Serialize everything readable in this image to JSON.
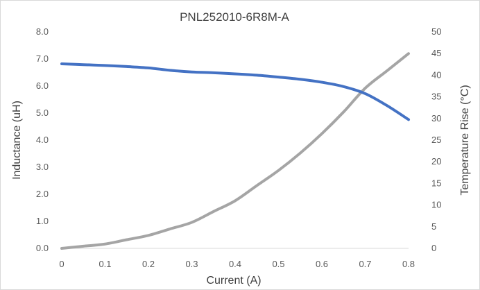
{
  "chart_data": {
    "type": "line",
    "title": "PNL252010-6R8M-A",
    "xlabel": "Current (A)",
    "ylabel": "Inductance (uH)",
    "y2label": "Temperature Rise (°C)",
    "xlim": [
      0,
      0.8
    ],
    "ylim": [
      0,
      8
    ],
    "y2lim": [
      0,
      50
    ],
    "x_ticks": [
      "0",
      "0.1",
      "0.2",
      "0.3",
      "0.4",
      "0.5",
      "0.6",
      "0.7",
      "0.8"
    ],
    "x_tick_values": [
      0,
      0.1,
      0.2,
      0.3,
      0.4,
      0.5,
      0.6,
      0.7,
      0.8
    ],
    "y_ticks": [
      "0.0",
      "1.0",
      "2.0",
      "3.0",
      "4.0",
      "5.0",
      "6.0",
      "7.0",
      "8.0"
    ],
    "y_tick_values": [
      0,
      1,
      2,
      3,
      4,
      5,
      6,
      7,
      8
    ],
    "y2_ticks": [
      "0",
      "5",
      "10",
      "15",
      "20",
      "25",
      "30",
      "35",
      "40",
      "45",
      "50"
    ],
    "y2_tick_values": [
      0,
      5,
      10,
      15,
      20,
      25,
      30,
      35,
      40,
      45,
      50
    ],
    "grid": false,
    "legend": "none",
    "series": [
      {
        "axis": "left",
        "color": "#4472c4",
        "x": [
          0,
          0.05,
          0.1,
          0.15,
          0.2,
          0.25,
          0.3,
          0.35,
          0.4,
          0.45,
          0.5,
          0.55,
          0.6,
          0.65,
          0.7,
          0.75,
          0.8
        ],
        "values": [
          6.82,
          6.79,
          6.76,
          6.72,
          6.67,
          6.58,
          6.52,
          6.49,
          6.45,
          6.4,
          6.33,
          6.25,
          6.14,
          5.98,
          5.72,
          5.28,
          4.76
        ]
      },
      {
        "axis": "right",
        "color": "#a5a5a5",
        "x": [
          0,
          0.05,
          0.1,
          0.15,
          0.2,
          0.25,
          0.3,
          0.35,
          0.4,
          0.45,
          0.5,
          0.55,
          0.6,
          0.65,
          0.7,
          0.75,
          0.8
        ],
        "values": [
          0,
          0.5,
          1.0,
          2.0,
          3.0,
          4.5,
          6.0,
          8.5,
          11.0,
          14.5,
          18.0,
          22.0,
          26.5,
          31.5,
          37.0,
          41.0,
          45.0
        ]
      }
    ]
  }
}
